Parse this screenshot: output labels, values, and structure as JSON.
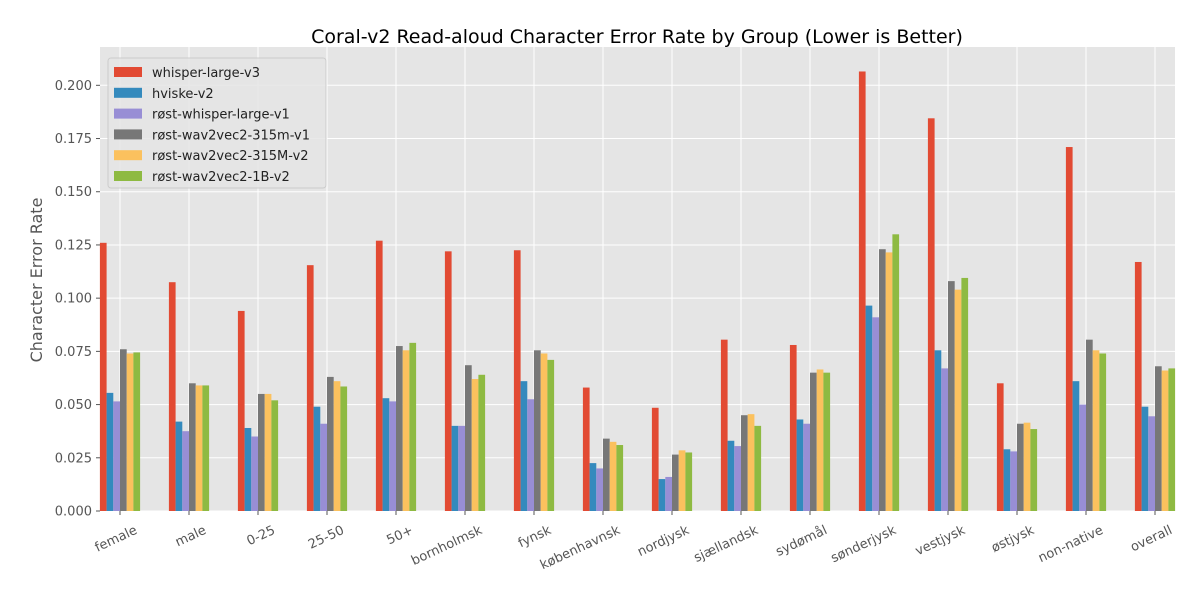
{
  "chart_data": {
    "type": "bar",
    "title": "Coral-v2 Read-aloud Character Error Rate by Group (Lower is Better)",
    "xlabel": "",
    "ylabel": "Character Error Rate",
    "ylim": [
      0,
      0.218
    ],
    "yticks": [
      "0.000",
      "0.025",
      "0.050",
      "0.075",
      "0.100",
      "0.125",
      "0.150",
      "0.175",
      "0.200"
    ],
    "grid": true,
    "legend_position": "top-left",
    "categories": [
      "female",
      "male",
      "0-25",
      "25-50",
      "50+",
      "bornholmsk",
      "fynsk",
      "københavnsk",
      "nordjysk",
      "sjællandsk",
      "sydømål",
      "sønderjysk",
      "vestjysk",
      "østjysk",
      "non-native",
      "overall"
    ],
    "series": [
      {
        "name": "whisper-large-v3",
        "color": "#E24A33",
        "values": [
          0.126,
          0.1075,
          0.094,
          0.1155,
          0.127,
          0.122,
          0.1225,
          0.058,
          0.0485,
          0.0805,
          0.078,
          0.2065,
          0.1845,
          0.06,
          0.171,
          0.117
        ]
      },
      {
        "name": "hviske-v2",
        "color": "#348ABD",
        "values": [
          0.0555,
          0.042,
          0.039,
          0.049,
          0.053,
          0.04,
          0.061,
          0.0225,
          0.015,
          0.033,
          0.043,
          0.0965,
          0.0755,
          0.029,
          0.061,
          0.049
        ]
      },
      {
        "name": "røst-whisper-large-v1",
        "color": "#988ED5",
        "values": [
          0.0515,
          0.0375,
          0.035,
          0.041,
          0.0515,
          0.04,
          0.0525,
          0.02,
          0.016,
          0.0305,
          0.041,
          0.091,
          0.067,
          0.028,
          0.05,
          0.0445
        ]
      },
      {
        "name": "røst-wav2vec2-315m-v1",
        "color": "#777777",
        "values": [
          0.076,
          0.06,
          0.055,
          0.063,
          0.0775,
          0.0685,
          0.0755,
          0.034,
          0.0265,
          0.045,
          0.065,
          0.123,
          0.108,
          0.041,
          0.0805,
          0.068
        ]
      },
      {
        "name": "røst-wav2vec2-315M-v2",
        "color": "#FBC15E",
        "values": [
          0.074,
          0.059,
          0.055,
          0.061,
          0.0755,
          0.062,
          0.074,
          0.0325,
          0.0285,
          0.0455,
          0.0665,
          0.1215,
          0.104,
          0.0415,
          0.0755,
          0.066
        ]
      },
      {
        "name": "røst-wav2vec2-1B-v2",
        "color": "#8EBA42",
        "values": [
          0.0745,
          0.059,
          0.052,
          0.0585,
          0.079,
          0.064,
          0.071,
          0.031,
          0.0275,
          0.04,
          0.065,
          0.13,
          0.1095,
          0.0385,
          0.074,
          0.067
        ]
      }
    ]
  }
}
